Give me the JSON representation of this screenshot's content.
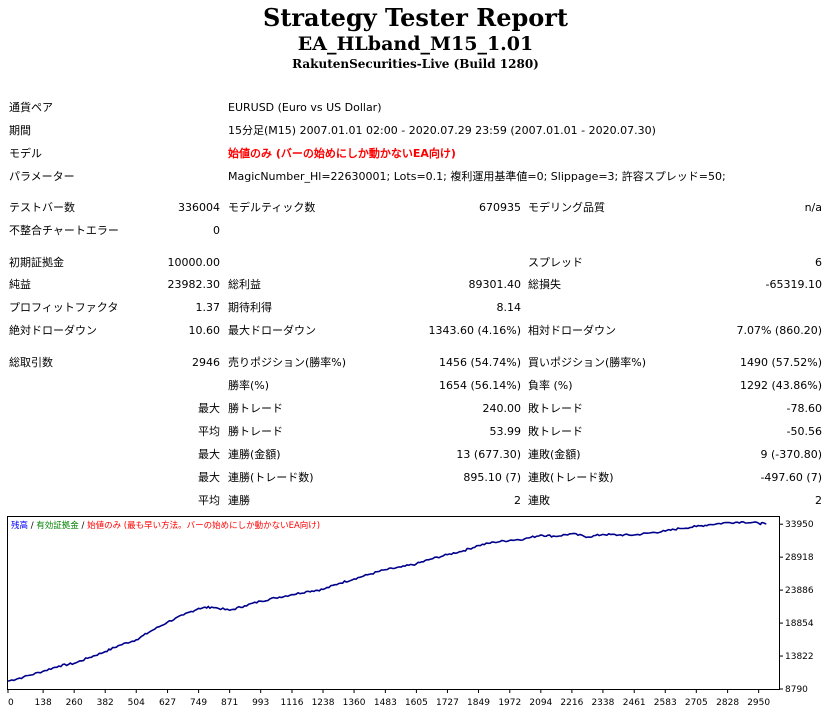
{
  "header": {
    "title": "Strategy Tester Report",
    "ea_name": "EA_HLband_M15_1.01",
    "server": "RakutenSecurities-Live (Build 1280)"
  },
  "info": {
    "symbol_label": "通貨ペア",
    "symbol": "EURUSD (Euro vs US Dollar)",
    "period_label": "期間",
    "period": "15分足(M15) 2007.01.01 02:00 - 2020.07.29 23:59 (2007.01.01 - 2020.07.30)",
    "model_label": "モデル",
    "model": "始値のみ (バーの始めにしか動かないEA向け)",
    "params_label": "パラメーター",
    "params": "MagicNumber_Hl=22630001; Lots=0.1; 複利運用基準値=0; Slippage=3; 許容スプレッド=50;"
  },
  "stats": {
    "bars_label": "テストバー数",
    "bars": "336004",
    "ticks_label": "モデルティック数",
    "ticks": "670935",
    "quality_label": "モデリング品質",
    "quality": "n/a",
    "mismatch_label": "不整合チャートエラー",
    "mismatch": "0",
    "deposit_label": "初期証拠金",
    "deposit": "10000.00",
    "spread_label": "スプレッド",
    "spread": "6",
    "net_label": "純益",
    "net": "23982.30",
    "gross_profit_label": "総利益",
    "gross_profit": "89301.40",
    "gross_loss_label": "総損失",
    "gross_loss": "-65319.10",
    "pf_label": "プロフィットファクタ",
    "pf": "1.37",
    "payoff_label": "期待利得",
    "payoff": "8.14",
    "abs_dd_label": "絶対ドローダウン",
    "abs_dd": "10.60",
    "max_dd_label": "最大ドローダウン",
    "max_dd": "1343.60 (4.16%)",
    "rel_dd_label": "相対ドローダウン",
    "rel_dd": "7.07% (860.20)",
    "trades_label": "総取引数",
    "trades": "2946",
    "short_label": "売りポジション(勝率%)",
    "short": "1456 (54.74%)",
    "long_label": "買いポジション(勝率%)",
    "long": "1490 (57.52%)",
    "win_rate_label": "勝率(%)",
    "win_rate": "1654 (56.14%)",
    "loss_rate_label": "負率 (%)",
    "loss_rate": "1292 (43.86%)",
    "max_label": "最大",
    "avg_label": "平均",
    "win_trade_label": "勝トレード",
    "loss_trade_label": "敗トレード",
    "largest_win": "240.00",
    "largest_loss": "-78.60",
    "avg_win": "53.99",
    "avg_loss": "-50.56",
    "cons_win_money_label": "連勝(金額)",
    "cons_win_money": "13 (677.30)",
    "cons_loss_money_label": "連敗(金額)",
    "cons_loss_money": "9 (-370.80)",
    "cons_win_count_label": "連勝(トレード数)",
    "cons_win_count": "895.10 (7)",
    "cons_loss_count_label": "連敗(トレード数)",
    "cons_loss_count": "-497.60 (7)",
    "avg_cons_win_label": "連勝",
    "avg_cons_win": "2",
    "avg_cons_loss_label": "連敗",
    "avg_cons_loss": "2"
  },
  "colors": {
    "balance_line": "#00008b",
    "legend_balance": "#0000ff",
    "legend_equity": "#008000",
    "legend_model": "#ff0000"
  },
  "chart_data": {
    "type": "line",
    "legend": [
      {
        "text": "残高",
        "color": "#0000ff"
      },
      {
        "text": "有効証拠金",
        "color": "#008000"
      },
      {
        "text": "始値のみ (最も早い方法。バーの始めにしか動かないEA向け)",
        "color": "#ff0000"
      }
    ],
    "legend_sep": " / ",
    "x_ticks": [
      0,
      138,
      260,
      382,
      504,
      627,
      749,
      871,
      993,
      1116,
      1238,
      1360,
      1483,
      1605,
      1727,
      1849,
      1972,
      2094,
      2216,
      2338,
      2461,
      2583,
      2705,
      2828,
      2950
    ],
    "y_ticks": [
      33950,
      28918,
      23886,
      18854,
      13822,
      8790
    ],
    "xlim": [
      0,
      3030
    ],
    "ylim": [
      8790,
      35050
    ],
    "series": [
      {
        "values": [
          [
            0,
            10000
          ],
          [
            60,
            10600
          ],
          [
            138,
            11500
          ],
          [
            200,
            12300
          ],
          [
            260,
            12700
          ],
          [
            320,
            13600
          ],
          [
            382,
            14500
          ],
          [
            440,
            15500
          ],
          [
            504,
            16300
          ],
          [
            560,
            17600
          ],
          [
            627,
            19000
          ],
          [
            690,
            20100
          ],
          [
            749,
            21100
          ],
          [
            800,
            21300
          ],
          [
            871,
            20800
          ],
          [
            930,
            21500
          ],
          [
            993,
            22200
          ],
          [
            1050,
            22700
          ],
          [
            1116,
            23200
          ],
          [
            1180,
            23700
          ],
          [
            1238,
            24000
          ],
          [
            1300,
            24900
          ],
          [
            1360,
            25600
          ],
          [
            1420,
            26300
          ],
          [
            1483,
            27000
          ],
          [
            1545,
            27400
          ],
          [
            1605,
            27900
          ],
          [
            1660,
            28600
          ],
          [
            1727,
            29300
          ],
          [
            1790,
            29900
          ],
          [
            1849,
            30700
          ],
          [
            1910,
            31200
          ],
          [
            1972,
            31500
          ],
          [
            2030,
            31700
          ],
          [
            2094,
            32300
          ],
          [
            2150,
            32100
          ],
          [
            2216,
            32500
          ],
          [
            2280,
            32000
          ],
          [
            2338,
            32400
          ],
          [
            2400,
            32300
          ],
          [
            2461,
            32300
          ],
          [
            2520,
            32600
          ],
          [
            2583,
            32900
          ],
          [
            2640,
            33300
          ],
          [
            2705,
            33600
          ],
          [
            2760,
            33900
          ],
          [
            2828,
            34200
          ],
          [
            2890,
            34300
          ],
          [
            2950,
            34100
          ],
          [
            2980,
            34000
          ]
        ]
      }
    ]
  }
}
